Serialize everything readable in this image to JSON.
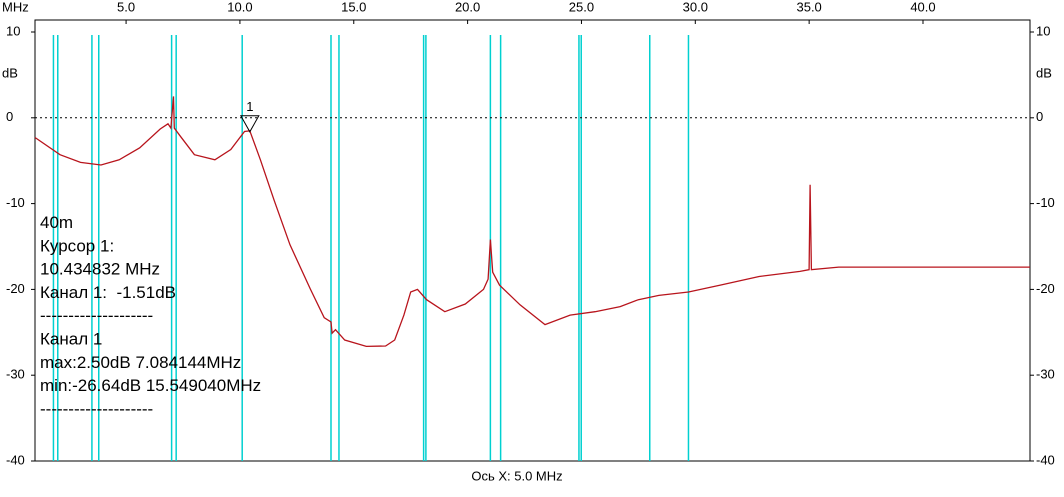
{
  "chart_data": {
    "type": "line",
    "x_unit_label": "MHz",
    "y_unit_label": "dB",
    "xlabel": "Ось X: 5.0 MHz",
    "xlim": [
      1.0,
      44.7
    ],
    "xticks": [
      {
        "value": 5,
        "label": "5.0"
      },
      {
        "value": 10,
        "label": "10.0"
      },
      {
        "value": 15,
        "label": "15.0"
      },
      {
        "value": 20,
        "label": "20.0"
      },
      {
        "value": 25,
        "label": "25.0"
      },
      {
        "value": 30,
        "label": "30.0"
      },
      {
        "value": 35,
        "label": "35.0"
      },
      {
        "value": 40,
        "label": "40.0"
      }
    ],
    "ylim": [
      -40,
      10
    ],
    "yticks": [
      10,
      0,
      -10,
      -20,
      -30,
      -40
    ],
    "reference_line": 0,
    "band_markers": {
      "color": "#00d0d0",
      "x": [
        1.81,
        2.0,
        3.5,
        3.8,
        7.0,
        7.2,
        10.1,
        14.0,
        14.35,
        18.068,
        18.168,
        21.0,
        21.45,
        24.89,
        24.99,
        28.0,
        29.7
      ]
    },
    "cursor": {
      "label": "1",
      "x": 10.434832
    },
    "series": [
      {
        "name": "Канал 1",
        "color": "#b8141c",
        "x": [
          1.0,
          2.1,
          3.0,
          3.9,
          4.7,
          5.6,
          6.5,
          6.84,
          6.97,
          7.084144,
          7.12,
          7.4,
          8.0,
          8.9,
          9.6,
          10.2,
          10.434832,
          10.9,
          11.5,
          12.2,
          13.1,
          13.7,
          14.0,
          14.05,
          14.2,
          14.6,
          15.54904,
          16.4,
          16.8,
          17.2,
          17.5,
          17.8,
          18.2,
          19.0,
          19.9,
          20.7,
          20.9,
          21.0,
          21.1,
          21.4,
          22.3,
          23.4,
          24.5,
          25.6,
          26.7,
          27.5,
          28.4,
          29.7,
          31.1,
          32.8,
          34.6,
          35.0,
          35.04,
          35.1,
          36.3,
          38.9,
          44.7
        ],
        "values": [
          -2.3,
          -4.3,
          -5.2,
          -5.5,
          -4.9,
          -3.5,
          -1.3,
          -0.7,
          -1.2,
          2.5,
          -1.2,
          -2.2,
          -4.3,
          -4.9,
          -3.7,
          -1.6,
          -1.51,
          -4.9,
          -9.6,
          -14.8,
          -20.0,
          -23.3,
          -23.8,
          -25.1,
          -24.7,
          -25.9,
          -26.64,
          -26.6,
          -25.9,
          -23.0,
          -20.3,
          -20.0,
          -21.2,
          -22.6,
          -21.7,
          -20.0,
          -18.8,
          -14.2,
          -18.0,
          -19.5,
          -21.8,
          -24.1,
          -23.0,
          -22.6,
          -22.0,
          -21.2,
          -20.7,
          -20.3,
          -19.5,
          -18.5,
          -17.9,
          -17.7,
          -7.8,
          -17.7,
          -17.4,
          -17.4,
          -17.4
        ]
      }
    ],
    "info_lines": [
      "40m",
      "Курсор 1:",
      "10.434832 MHz",
      "Канал 1:  -1.51dB",
      "--------------------",
      "Канал 1",
      "max:2.50dB 7.084144MHz",
      "min:-26.64dB 15.549040MHz",
      "--------------------"
    ]
  }
}
